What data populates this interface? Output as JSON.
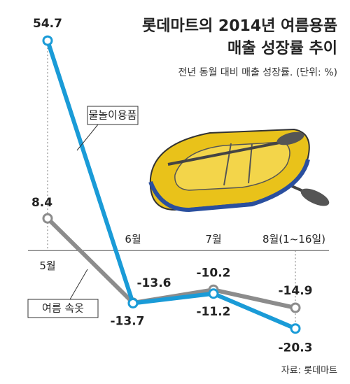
{
  "chart_data": {
    "type": "line",
    "title": [
      "롯데마트의 2014년 여름용품",
      "매출 성장률 추이"
    ],
    "subtitle": "전년 동월 대비 매출 성장률. (단위: %)",
    "source": "자료: 롯데마트",
    "categories": [
      "5월",
      "6월",
      "7월",
      "8월(1~16일)"
    ],
    "series": [
      {
        "name": "물놀이용품",
        "color": "#1a9bd7",
        "values": [
          54.7,
          -13.7,
          -11.2,
          -20.3
        ]
      },
      {
        "name": "여름 속옷",
        "color": "#8c8c8c",
        "values": [
          8.4,
          -13.6,
          -10.2,
          -14.9
        ]
      }
    ],
    "ylim": [
      -24,
      58
    ]
  }
}
